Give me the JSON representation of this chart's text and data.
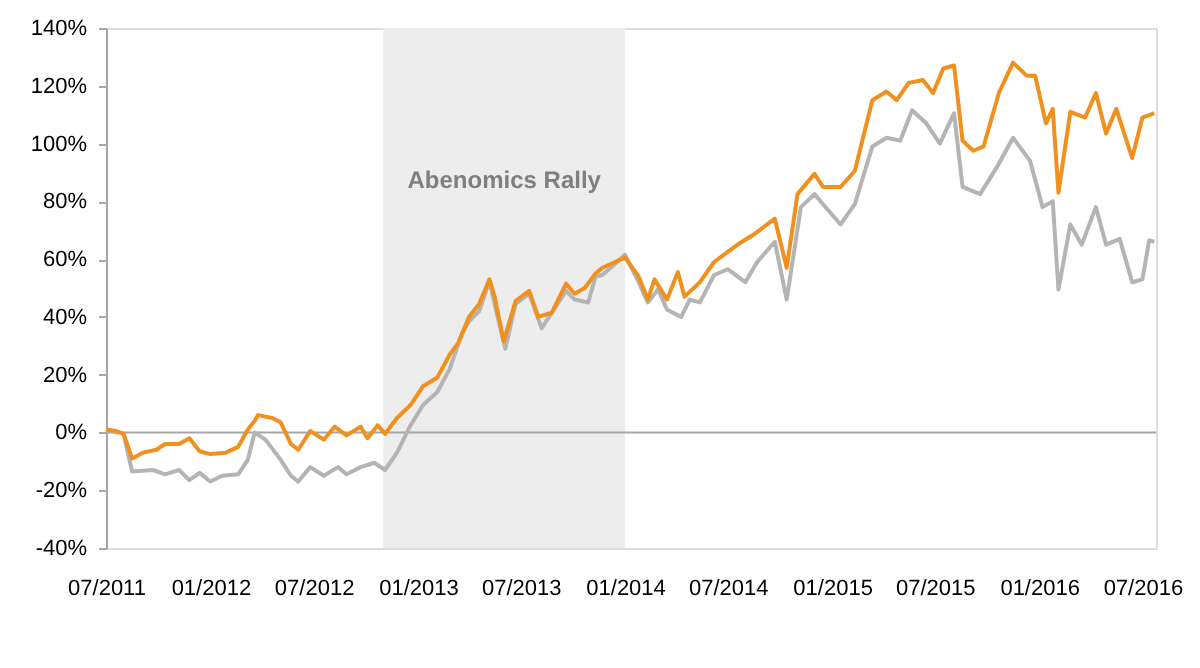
{
  "chart_data": {
    "type": "line",
    "xlim": [
      "2011-07-01",
      "2016-07-25"
    ],
    "xticks": [
      {
        "value": "2011-07-01",
        "label": "07/2011"
      },
      {
        "value": "2012-01-01",
        "label": "01/2012"
      },
      {
        "value": "2012-07-01",
        "label": "07/2012"
      },
      {
        "value": "2013-01-01",
        "label": "01/2013"
      },
      {
        "value": "2013-07-01",
        "label": "07/2013"
      },
      {
        "value": "2014-01-01",
        "label": "01/2014"
      },
      {
        "value": "2014-07-01",
        "label": "07/2014"
      },
      {
        "value": "2015-01-01",
        "label": "01/2015"
      },
      {
        "value": "2015-07-01",
        "label": "07/2015"
      },
      {
        "value": "2016-01-01",
        "label": "01/2016"
      },
      {
        "value": "2016-07-01",
        "label": "07/2016"
      }
    ],
    "ylim": [
      -40,
      140
    ],
    "yticks": [
      {
        "value": -40,
        "label": "-40%"
      },
      {
        "value": -20,
        "label": "-20%"
      },
      {
        "value": 0,
        "label": "0%"
      },
      {
        "value": 20,
        "label": "20%"
      },
      {
        "value": 40,
        "label": "40%"
      },
      {
        "value": 60,
        "label": "60%"
      },
      {
        "value": 80,
        "label": "80%"
      },
      {
        "value": 100,
        "label": "100%"
      },
      {
        "value": 120,
        "label": "120%"
      },
      {
        "value": 140,
        "label": "140%"
      }
    ],
    "grid": false,
    "legend": false,
    "line_style": "solid",
    "marker": "none",
    "bands": [
      {
        "axis": "x",
        "from": "2012-11-01",
        "to": "2014-01-01",
        "label": "Abenomics Rally",
        "color": "#ededed"
      }
    ],
    "ref_lines": [
      {
        "axis": "y",
        "value": 0,
        "color": "#a6a6a6"
      }
    ],
    "series": [
      {
        "color": "#b4b4b4",
        "x": [
          "2011-07-01",
          "2011-08-01",
          "2011-08-16",
          "2011-09-22",
          "2011-10-13",
          "2011-11-07",
          "2011-11-25",
          "2011-12-13",
          "2012-01-01",
          "2012-01-22",
          "2012-02-19",
          "2012-03-07",
          "2012-03-19",
          "2012-04-07",
          "2012-05-04",
          "2012-05-22",
          "2012-06-04",
          "2012-06-25",
          "2012-07-19",
          "2012-08-13",
          "2012-08-28",
          "2012-09-22",
          "2012-10-16",
          "2012-11-04",
          "2012-11-25",
          "2012-12-19",
          "2013-01-10",
          "2013-02-04",
          "2013-02-26",
          "2013-03-19",
          "2013-04-01",
          "2013-04-19",
          "2013-05-07",
          "2013-05-19",
          "2013-06-04",
          "2013-06-22",
          "2013-07-16",
          "2013-08-07",
          "2013-08-25",
          "2013-09-19",
          "2013-10-04",
          "2013-10-28",
          "2013-11-10",
          "2013-11-22",
          "2014-01-01",
          "2014-01-25",
          "2014-02-10",
          "2014-02-28",
          "2014-03-16",
          "2014-04-10",
          "2014-04-25",
          "2014-05-13",
          "2014-06-07",
          "2014-07-01",
          "2014-08-01",
          "2014-08-22",
          "2014-09-22",
          "2014-10-13",
          "2014-11-07",
          "2014-12-01",
          "2014-12-16",
          "2015-01-16",
          "2015-02-10",
          "2015-03-13",
          "2015-04-07",
          "2015-05-01",
          "2015-05-22",
          "2015-06-16",
          "2015-07-10",
          "2015-08-04",
          "2015-08-19",
          "2015-09-19",
          "2015-10-19",
          "2015-11-16",
          "2015-12-16",
          "2016-01-07",
          "2016-01-25",
          "2016-02-04",
          "2016-02-25",
          "2016-03-16",
          "2016-04-10",
          "2016-04-28",
          "2016-05-22",
          "2016-06-13",
          "2016-07-01",
          "2016-07-13",
          "2016-07-22"
        ],
        "values": [
          1,
          -0.5,
          -13.5,
          -13,
          -14.5,
          -13,
          -16.5,
          -14,
          -17,
          -15,
          -14.5,
          -9.5,
          0,
          -2.5,
          -9.5,
          -15,
          -17,
          -12,
          -15,
          -12,
          -14.5,
          -12,
          -10.5,
          -13,
          -7,
          2.5,
          9.5,
          14,
          22,
          34,
          38.5,
          42,
          52.5,
          42,
          29,
          44.5,
          48,
          36,
          41.5,
          49,
          46,
          45,
          54,
          54.5,
          61.5,
          52,
          45,
          49.5,
          42.5,
          40,
          46,
          45,
          54.5,
          56.5,
          52,
          59,
          66,
          46,
          78,
          82.5,
          79,
          72,
          79,
          99,
          102,
          101,
          111.5,
          107,
          100,
          110.5,
          85,
          82.5,
          92,
          102,
          94,
          78,
          80,
          49.5,
          72,
          65,
          78,
          65,
          67,
          52,
          53,
          66.5,
          66
        ]
      },
      {
        "color": "#f0901e",
        "x": [
          "2011-07-01",
          "2011-07-19",
          "2011-08-01",
          "2011-08-16",
          "2011-09-04",
          "2011-09-28",
          "2011-10-13",
          "2011-11-07",
          "2011-11-25",
          "2011-12-13",
          "2012-01-01",
          "2012-01-28",
          "2012-02-19",
          "2012-03-07",
          "2012-03-19",
          "2012-03-25",
          "2012-04-19",
          "2012-05-04",
          "2012-05-22",
          "2012-06-04",
          "2012-06-25",
          "2012-07-19",
          "2012-08-07",
          "2012-08-28",
          "2012-09-22",
          "2012-10-04",
          "2012-10-22",
          "2012-11-04",
          "2012-11-25",
          "2012-12-19",
          "2013-01-10",
          "2013-02-04",
          "2013-02-26",
          "2013-03-13",
          "2013-04-01",
          "2013-04-19",
          "2013-05-07",
          "2013-05-16",
          "2013-06-01",
          "2013-06-22",
          "2013-07-16",
          "2013-08-01",
          "2013-08-25",
          "2013-09-19",
          "2013-10-04",
          "2013-10-22",
          "2013-11-10",
          "2013-11-22",
          "2014-01-01",
          "2014-01-25",
          "2014-02-10",
          "2014-02-22",
          "2014-03-16",
          "2014-04-04",
          "2014-04-16",
          "2014-05-13",
          "2014-06-07",
          "2014-07-01",
          "2014-07-22",
          "2014-08-16",
          "2014-09-22",
          "2014-10-13",
          "2014-11-01",
          "2014-12-01",
          "2014-12-16",
          "2015-01-16",
          "2015-02-10",
          "2015-03-13",
          "2015-04-07",
          "2015-04-25",
          "2015-05-16",
          "2015-06-10",
          "2015-06-28",
          "2015-07-16",
          "2015-08-04",
          "2015-08-19",
          "2015-09-07",
          "2015-09-25",
          "2015-10-22",
          "2015-11-16",
          "2015-12-10",
          "2015-12-25",
          "2016-01-13",
          "2016-01-25",
          "2016-02-04",
          "2016-02-25",
          "2016-03-22",
          "2016-04-10",
          "2016-04-28",
          "2016-05-16",
          "2016-06-13",
          "2016-07-01",
          "2016-07-22"
        ],
        "values": [
          1,
          0.5,
          -0.5,
          -9,
          -7,
          -6,
          -4,
          -4,
          -2,
          -6.5,
          -7.5,
          -7,
          -5,
          1,
          4,
          6,
          5,
          3.5,
          -4,
          -6,
          0.5,
          -2.5,
          2,
          -1,
          2,
          -2,
          2.5,
          -0.5,
          5,
          9.5,
          16,
          19,
          27,
          31,
          40,
          44.5,
          53,
          47,
          31.5,
          45.5,
          49,
          40,
          41.5,
          51.5,
          48,
          50,
          55,
          57,
          60.5,
          54,
          46,
          53,
          46,
          55.5,
          47,
          52,
          59,
          62.5,
          65.5,
          68.5,
          74,
          57,
          82.5,
          89.5,
          85,
          85,
          90.5,
          115,
          118,
          115,
          121,
          122,
          117.5,
          126,
          127,
          101,
          97.5,
          99,
          117.5,
          128,
          123.5,
          123.5,
          107,
          112,
          83,
          111,
          109,
          117.5,
          103.5,
          112,
          95,
          109,
          110.5
        ]
      }
    ]
  }
}
